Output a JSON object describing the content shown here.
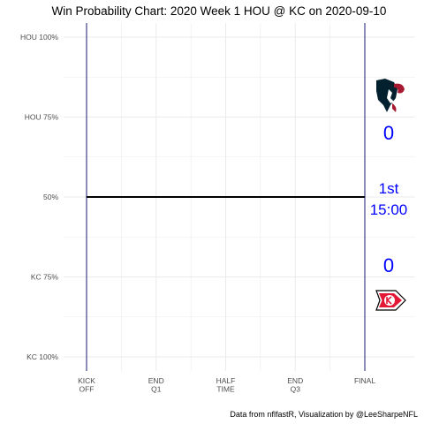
{
  "chart_data": {
    "type": "line",
    "title": "Win Probability Chart: 2020 Week 1 HOU @ KC on 2020-09-10",
    "caption": "Data from nflfastR, Visualization by @LeeSharpeNFL",
    "x_ticks": [
      {
        "value": 0,
        "lines": [
          "KICK",
          "OFF"
        ]
      },
      {
        "value": 900,
        "lines": [
          "END",
          "Q1"
        ]
      },
      {
        "value": 1800,
        "lines": [
          "HALF",
          "TIME"
        ]
      },
      {
        "value": 2700,
        "lines": [
          "END",
          "Q3"
        ]
      },
      {
        "value": 3600,
        "lines": [
          "FINAL"
        ]
      }
    ],
    "y_ticks": [
      {
        "value": 1.0,
        "label": "HOU 100%"
      },
      {
        "value": 0.75,
        "label": "HOU 75%"
      },
      {
        "value": 0.5,
        "label": "50%"
      },
      {
        "value": 0.25,
        "label": "KC 75%"
      },
      {
        "value": 0.0,
        "label": "KC 100%"
      }
    ],
    "xlim": [
      0,
      3600
    ],
    "ylim": [
      0,
      1
    ],
    "grid": true,
    "vlines": [
      0,
      3600
    ],
    "series": [
      {
        "x": [
          0,
          3600
        ],
        "y": [
          0.5,
          0.5
        ]
      }
    ],
    "annotations": {
      "home_score": "0",
      "away_score": "0",
      "quarter": "1st",
      "clock": "15:00"
    },
    "teams": {
      "top": {
        "abbr": "HOU",
        "logo": "houston-texans-logo"
      },
      "bottom": {
        "abbr": "KC",
        "logo": "kansas-city-chiefs-logo"
      }
    }
  },
  "colors": {
    "line": "#000000",
    "vline": "#191970",
    "grid": "#ebebeb",
    "annotation": "#0000ff",
    "axis_text": "#4d4d4d",
    "texans_navy": "#03202f",
    "texans_red": "#a71930",
    "chiefs_red": "#e31837"
  }
}
